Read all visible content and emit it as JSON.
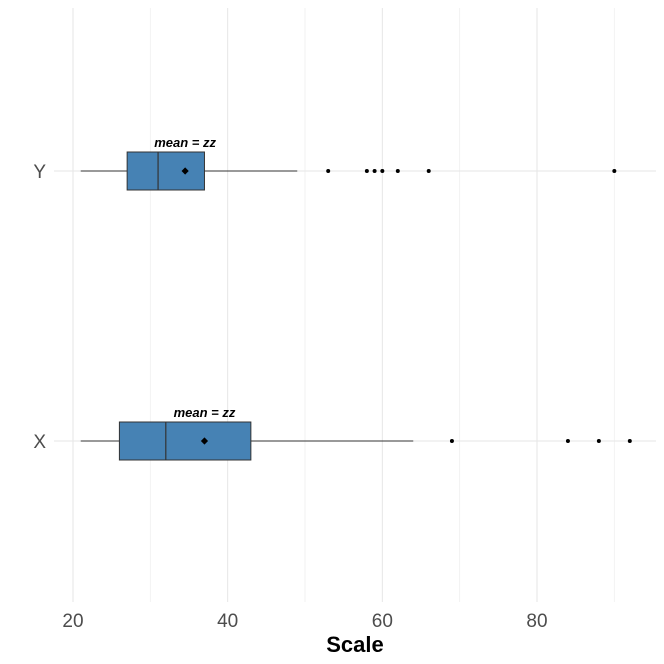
{
  "chart_data": {
    "type": "boxplot",
    "orientation": "horizontal",
    "title": "",
    "xlabel": "Scale",
    "ylabel": "",
    "xlim": [
      17.5,
      93
    ],
    "x_ticks": [
      20,
      40,
      60,
      80
    ],
    "grid": true,
    "box_color": "#4682b4",
    "categories": [
      "X",
      "Y"
    ],
    "series": [
      {
        "category": "X",
        "whisker_low": 21,
        "q1": 26,
        "median": 32,
        "q3": 43,
        "whisker_high": 64,
        "mean": 37,
        "outliers": [
          69,
          84,
          88,
          92
        ],
        "annotation": "mean = zz"
      },
      {
        "category": "Y",
        "whisker_low": 21,
        "q1": 27,
        "median": 31,
        "q3": 37,
        "whisker_high": 49,
        "mean": 34.5,
        "outliers": [
          53,
          58,
          59,
          60,
          62,
          66,
          90
        ],
        "annotation": "mean = zz"
      }
    ]
  }
}
